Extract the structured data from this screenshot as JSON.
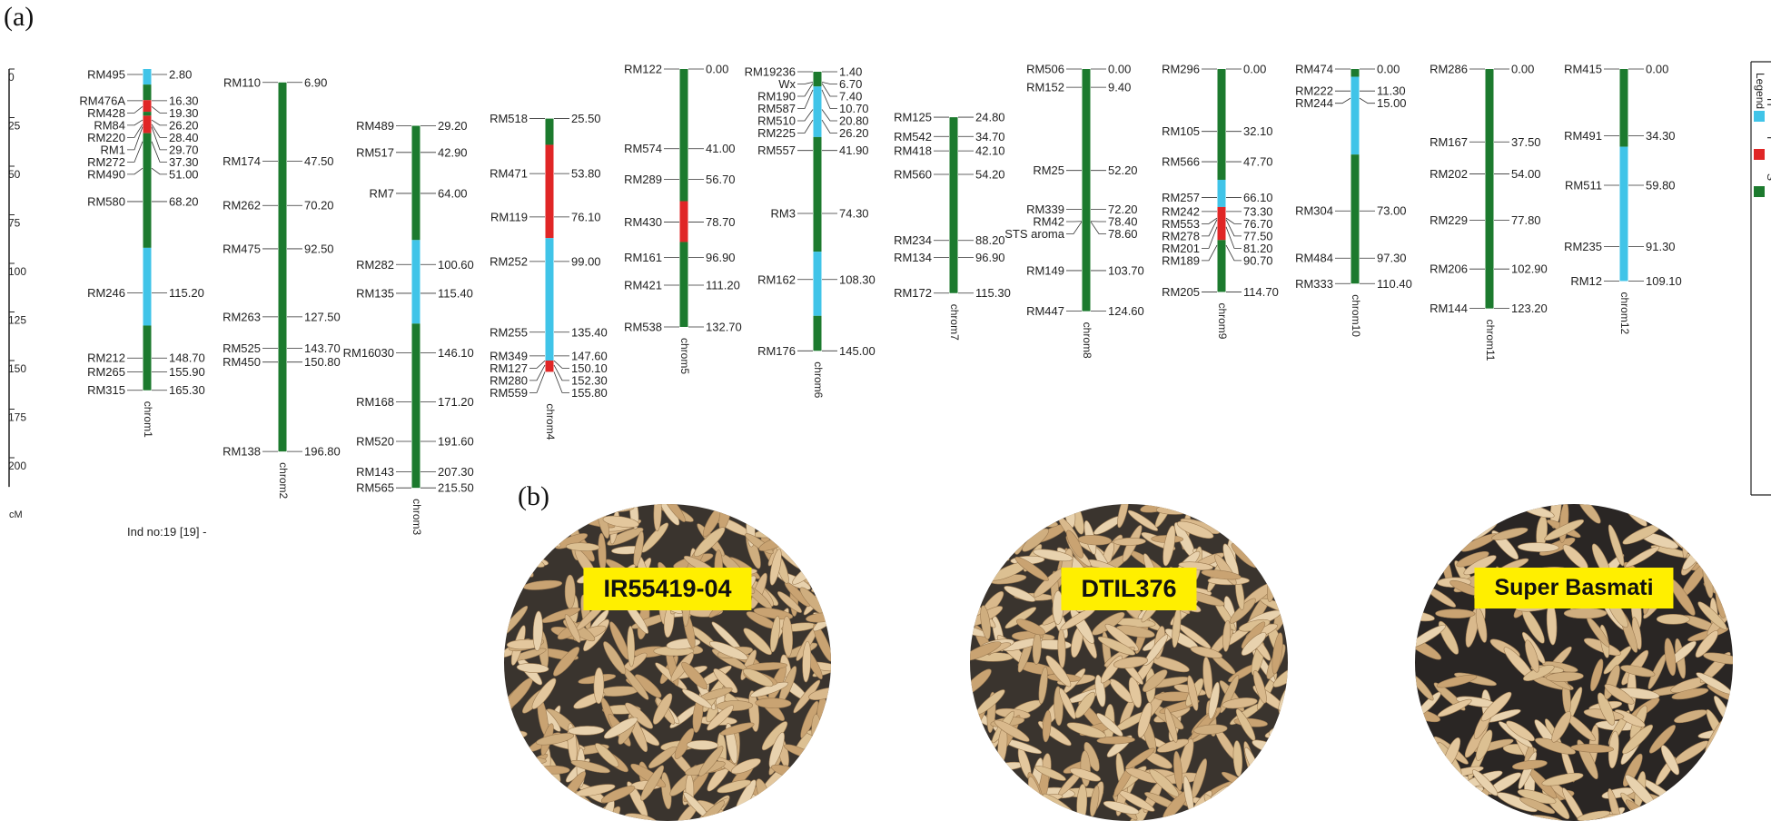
{
  "figure": {
    "panel_a_label": "(a)",
    "panel_b_label": "(b)",
    "individual_label": "Ind no:19 [19] -",
    "axis_unit": "cM",
    "axis_ticks": [
      "0",
      "25",
      "50",
      "75",
      "100",
      "125",
      "150",
      "175",
      "200"
    ],
    "legend": {
      "title": "Legend",
      "entries": [
        {
          "code": "H",
          "color": "#40c4e8"
        },
        {
          "code": "I",
          "color": "#e02626"
        },
        {
          "code": "S",
          "color": "#1c7a2e"
        }
      ]
    },
    "colors": {
      "H": "#40c4e8",
      "I": "#e02626",
      "S": "#1c7a2e"
    },
    "chromosomes": [
      {
        "name": "chrom1",
        "length": 165.3,
        "markers": [
          [
            "RM495",
            "2.80"
          ],
          [
            "RM476A",
            "16.30"
          ],
          [
            "RM428",
            "19.30"
          ],
          [
            "RM84",
            "26.20"
          ],
          [
            "RM220",
            "28.40"
          ],
          [
            "RM1",
            "29.70"
          ],
          [
            "RM272",
            "37.30"
          ],
          [
            "RM490",
            "51.00"
          ],
          [
            "RM580",
            "68.20"
          ],
          [
            "RM246",
            "115.20"
          ],
          [
            "RM212",
            "148.70"
          ],
          [
            "RM265",
            "155.90"
          ],
          [
            "RM315",
            "165.30"
          ]
        ],
        "segments": [
          [
            0,
            8,
            "H"
          ],
          [
            8,
            16,
            "S"
          ],
          [
            16,
            22,
            "I"
          ],
          [
            22,
            24,
            "S"
          ],
          [
            24,
            33,
            "I"
          ],
          [
            33,
            92,
            "S"
          ],
          [
            92,
            132,
            "H"
          ],
          [
            132,
            165.3,
            "S"
          ]
        ]
      },
      {
        "name": "chrom2",
        "length": 196.8,
        "markers": [
          [
            "RM110",
            "6.90"
          ],
          [
            "RM174",
            "47.50"
          ],
          [
            "RM262",
            "70.20"
          ],
          [
            "RM475",
            "92.50"
          ],
          [
            "RM263",
            "127.50"
          ],
          [
            "RM525",
            "143.70"
          ],
          [
            "RM450",
            "150.80"
          ],
          [
            "RM138",
            "196.80"
          ]
        ],
        "segments": [
          [
            6.9,
            196.8,
            "S"
          ]
        ]
      },
      {
        "name": "chrom3",
        "length": 215.5,
        "markers": [
          [
            "RM489",
            "29.20"
          ],
          [
            "RM517",
            "42.90"
          ],
          [
            "RM7",
            "64.00"
          ],
          [
            "RM282",
            "100.60"
          ],
          [
            "RM135",
            "115.40"
          ],
          [
            "RM16030",
            "146.10"
          ],
          [
            "RM168",
            "171.20"
          ],
          [
            "RM520",
            "191.60"
          ],
          [
            "RM143",
            "207.30"
          ],
          [
            "RM565",
            "215.50"
          ]
        ],
        "segments": [
          [
            29.2,
            88,
            "S"
          ],
          [
            88,
            131,
            "H"
          ],
          [
            131,
            215.5,
            "S"
          ]
        ]
      },
      {
        "name": "chrom4",
        "length": 155.8,
        "markers": [
          [
            "RM518",
            "25.50"
          ],
          [
            "RM471",
            "53.80"
          ],
          [
            "RM119",
            "76.10"
          ],
          [
            "RM252",
            "99.00"
          ],
          [
            "RM255",
            "135.40"
          ],
          [
            "RM349",
            "147.60"
          ],
          [
            "RM127",
            "150.10"
          ],
          [
            "RM280",
            "152.30"
          ],
          [
            "RM559",
            "155.80"
          ]
        ],
        "segments": [
          [
            25.5,
            39,
            "S"
          ],
          [
            39,
            87,
            "I"
          ],
          [
            87,
            150,
            "H"
          ],
          [
            150,
            155.8,
            "I"
          ]
        ]
      },
      {
        "name": "chrom5",
        "length": 132.7,
        "markers": [
          [
            "RM122",
            "0.00"
          ],
          [
            "RM574",
            "41.00"
          ],
          [
            "RM289",
            "56.70"
          ],
          [
            "RM430",
            "78.70"
          ],
          [
            "RM161",
            "96.90"
          ],
          [
            "RM421",
            "111.20"
          ],
          [
            "RM538",
            "132.70"
          ]
        ],
        "segments": [
          [
            0,
            68,
            "S"
          ],
          [
            68,
            89,
            "I"
          ],
          [
            89,
            132.7,
            "S"
          ]
        ]
      },
      {
        "name": "chrom6",
        "length": 145.0,
        "markers": [
          [
            "RM19236",
            "1.40"
          ],
          [
            "Wx",
            "6.70"
          ],
          [
            "RM190",
            "7.40"
          ],
          [
            "RM587",
            "10.70"
          ],
          [
            "RM510",
            "20.80"
          ],
          [
            "RM225",
            "26.20"
          ],
          [
            "RM557",
            "41.90"
          ],
          [
            "RM3",
            "74.30"
          ],
          [
            "RM162",
            "108.30"
          ],
          [
            "RM176",
            "145.00"
          ]
        ],
        "segments": [
          [
            1.4,
            9,
            "S"
          ],
          [
            9,
            35,
            "H"
          ],
          [
            35,
            94,
            "S"
          ],
          [
            94,
            127,
            "H"
          ],
          [
            127,
            145,
            "S"
          ]
        ]
      },
      {
        "name": "chrom7",
        "length": 115.3,
        "markers": [
          [
            "RM125",
            "24.80"
          ],
          [
            "RM542",
            "34.70"
          ],
          [
            "RM418",
            "42.10"
          ],
          [
            "RM560",
            "54.20"
          ],
          [
            "RM234",
            "88.20"
          ],
          [
            "RM134",
            "96.90"
          ],
          [
            "RM172",
            "115.30"
          ]
        ],
        "segments": [
          [
            24.8,
            115.3,
            "S"
          ]
        ]
      },
      {
        "name": "chrom8",
        "length": 124.6,
        "markers": [
          [
            "RM506",
            "0.00"
          ],
          [
            "RM152",
            "9.40"
          ],
          [
            "RM25",
            "52.20"
          ],
          [
            "RM339",
            "72.20"
          ],
          [
            "RM42",
            "78.40"
          ],
          [
            "STS aroma",
            "78.60"
          ],
          [
            "RM149",
            "103.70"
          ],
          [
            "RM447",
            "124.60"
          ]
        ],
        "segments": [
          [
            0,
            124.6,
            "S"
          ]
        ]
      },
      {
        "name": "chrom9",
        "length": 114.7,
        "markers": [
          [
            "RM296",
            "0.00"
          ],
          [
            "RM105",
            "32.10"
          ],
          [
            "RM566",
            "47.70"
          ],
          [
            "RM257",
            "66.10"
          ],
          [
            "RM242",
            "73.30"
          ],
          [
            "RM553",
            "76.70"
          ],
          [
            "RM278",
            "77.50"
          ],
          [
            "RM201",
            "81.20"
          ],
          [
            "RM189",
            "90.70"
          ],
          [
            "RM205",
            "114.70"
          ]
        ],
        "segments": [
          [
            0,
            57,
            "S"
          ],
          [
            57,
            71,
            "H"
          ],
          [
            71,
            88,
            "I"
          ],
          [
            88,
            114.7,
            "S"
          ]
        ]
      },
      {
        "name": "chrom10",
        "length": 110.4,
        "markers": [
          [
            "RM474",
            "0.00"
          ],
          [
            "RM222",
            "11.30"
          ],
          [
            "RM244",
            "15.00"
          ],
          [
            "RM304",
            "73.00"
          ],
          [
            "RM484",
            "97.30"
          ],
          [
            "RM333",
            "110.40"
          ]
        ],
        "segments": [
          [
            0,
            4,
            "S"
          ],
          [
            4,
            44,
            "H"
          ],
          [
            44,
            110.4,
            "S"
          ]
        ]
      },
      {
        "name": "chrom11",
        "length": 123.2,
        "markers": [
          [
            "RM286",
            "0.00"
          ],
          [
            "RM167",
            "37.50"
          ],
          [
            "RM202",
            "54.00"
          ],
          [
            "RM229",
            "77.80"
          ],
          [
            "RM206",
            "102.90"
          ],
          [
            "RM144",
            "123.20"
          ]
        ],
        "segments": [
          [
            0,
            123.2,
            "S"
          ]
        ]
      },
      {
        "name": "chrom12",
        "length": 109.1,
        "markers": [
          [
            "RM415",
            "0.00"
          ],
          [
            "RM491",
            "34.30"
          ],
          [
            "RM511",
            "59.80"
          ],
          [
            "RM235",
            "91.30"
          ],
          [
            "RM12",
            "109.10"
          ]
        ],
        "segments": [
          [
            0,
            40,
            "S"
          ],
          [
            40,
            109.1,
            "H"
          ]
        ]
      }
    ]
  },
  "grain_photos": [
    {
      "label": "IR55419-04"
    },
    {
      "label": "DTIL376"
    },
    {
      "label": "Super Basmati"
    }
  ]
}
